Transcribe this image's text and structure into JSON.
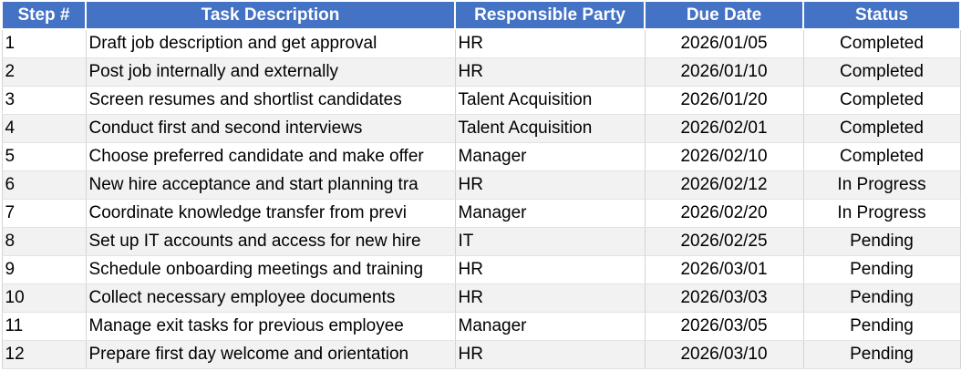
{
  "table": {
    "headers": [
      "Step #",
      "Task Description",
      "Responsible Party",
      "Due Date",
      "Status"
    ],
    "rows": [
      {
        "step": "1",
        "task": "Draft job description and get approval",
        "party": "HR",
        "due": "2026/01/05",
        "status": "Completed"
      },
      {
        "step": "2",
        "task": "Post job internally and externally",
        "party": "HR",
        "due": "2026/01/10",
        "status": "Completed"
      },
      {
        "step": "3",
        "task": "Screen resumes and shortlist candidates",
        "party": "Talent Acquisition",
        "due": "2026/01/20",
        "status": "Completed"
      },
      {
        "step": "4",
        "task": "Conduct first and second interviews",
        "party": "Talent Acquisition",
        "due": "2026/02/01",
        "status": "Completed"
      },
      {
        "step": "5",
        "task": "Choose preferred candidate and make offer",
        "party": "Manager",
        "due": "2026/02/10",
        "status": "Completed"
      },
      {
        "step": "6",
        "task": "New hire acceptance and start planning tra",
        "party": "HR",
        "due": "2026/02/12",
        "status": "In Progress"
      },
      {
        "step": "7",
        "task": "Coordinate knowledge transfer from previ",
        "party": "Manager",
        "due": "2026/02/20",
        "status": "In Progress"
      },
      {
        "step": "8",
        "task": "Set up IT accounts and access for new hire",
        "party": "IT",
        "due": "2026/02/25",
        "status": "Pending"
      },
      {
        "step": "9",
        "task": "Schedule onboarding meetings and training",
        "party": "HR",
        "due": "2026/03/01",
        "status": "Pending"
      },
      {
        "step": "10",
        "task": "Collect necessary employee documents",
        "party": "HR",
        "due": "2026/03/03",
        "status": "Pending"
      },
      {
        "step": "11",
        "task": "Manage exit tasks for previous employee",
        "party": "Manager",
        "due": "2026/03/05",
        "status": "Pending"
      },
      {
        "step": "12",
        "task": "Prepare first day welcome and orientation",
        "party": "HR",
        "due": "2026/03/10",
        "status": "Pending"
      }
    ]
  },
  "colors": {
    "header_background": "#4472c4",
    "header_text": "#ffffff",
    "shaded_row": "#f2f2f2",
    "gridline": "#d4d4d4"
  }
}
